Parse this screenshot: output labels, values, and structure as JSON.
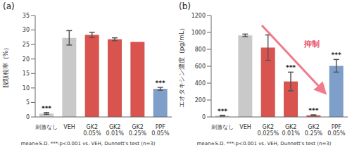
{
  "chart_data": [
    {
      "type": "bar",
      "title": "(a)",
      "y_label": "脱顆粒率（%）",
      "categories": [
        "刺激なし",
        "VEH",
        "GK2 0.05%",
        "GK2 0.01%",
        "GK2 0.25%",
        "PPF 0.05%"
      ],
      "values": [
        1.2,
        27.3,
        28.3,
        26.8,
        25.9,
        9.7
      ],
      "errors": [
        0.3,
        2.5,
        0.9,
        0.5,
        0,
        0.5
      ],
      "significance": [
        "***",
        null,
        null,
        null,
        null,
        "***"
      ],
      "colors": [
        "#c9c9c9",
        "#c9c9c9",
        "#d9534f",
        "#d9534f",
        "#d9534f",
        "#7f9fcb"
      ],
      "ylim": [
        0,
        35
      ],
      "yticks": [
        0,
        5,
        10,
        15,
        20,
        25,
        30,
        35
      ],
      "grid": false,
      "footnote": "mean±S.D. ***:p<0.001 vs. VEH, Dunnett's test (n=3)"
    },
    {
      "type": "bar",
      "title": "(b)",
      "y_label": "エオタキシン濃度（pg/mL）",
      "categories": [
        "刺激なし",
        "VEH",
        "GK2 0.025%",
        "GK2 0.01%",
        "GK2 0.25%",
        "PPF 0.05%"
      ],
      "values": [
        15,
        965,
        820,
        420,
        20,
        605
      ],
      "errors": [
        5,
        15,
        150,
        110,
        5,
        75
      ],
      "significance": [
        "***",
        null,
        null,
        "***",
        "***",
        "***"
      ],
      "colors": [
        "#c9c9c9",
        "#c9c9c9",
        "#d9534f",
        "#d9534f",
        "#d9534f",
        "#7f9fcb"
      ],
      "ylim": [
        0,
        1200
      ],
      "yticks": [
        0,
        200,
        400,
        600,
        800,
        1000,
        1200
      ],
      "grid": false,
      "annotations": [
        "抑制"
      ],
      "footnote": "mean±S.D. ***:p<0.001 vs. VEH, Dunnett's test (n=3)"
    }
  ]
}
